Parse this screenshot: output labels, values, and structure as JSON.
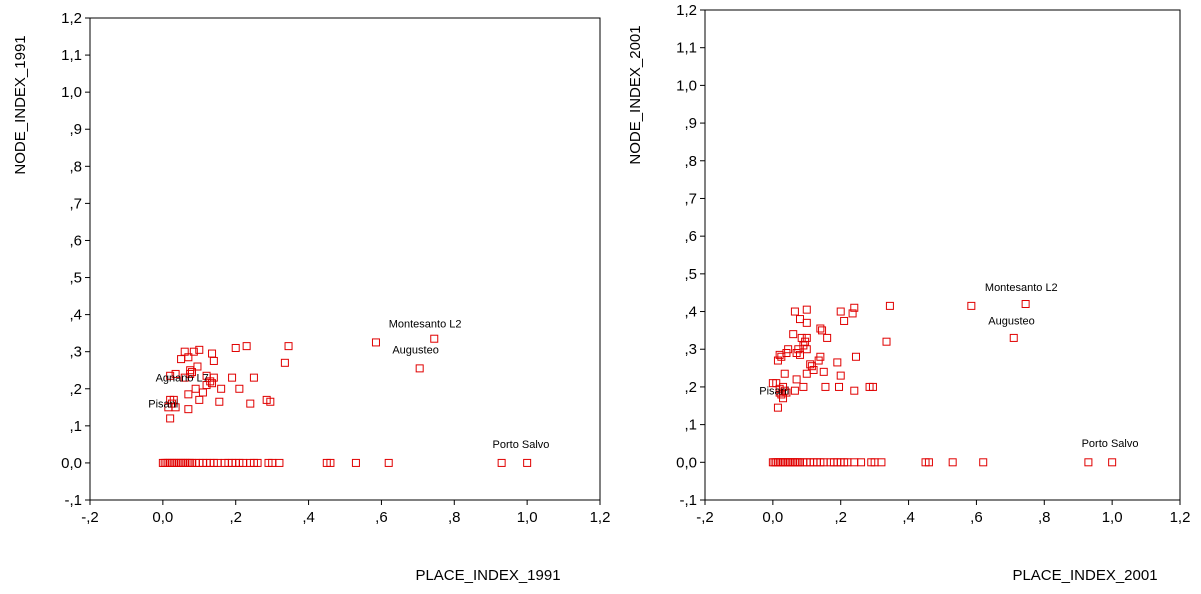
{
  "marker_color": "#e00000",
  "chart_data": [
    {
      "type": "scatter",
      "xlabel": "PLACE_INDEX_1991",
      "ylabel": "NODE_INDEX_1991",
      "xlim": [
        -0.2,
        1.2
      ],
      "ylim": [
        -0.1,
        1.2
      ],
      "x_ticks": [
        "-,2",
        "0,0",
        ",2",
        ",4",
        ",6",
        ",8",
        "1,0",
        "1,2"
      ],
      "y_ticks": [
        "-,1",
        "0,0",
        ",1",
        ",2",
        ",3",
        ",4",
        ",5",
        ",6",
        ",7",
        ",8",
        ",9",
        "1,0",
        "1,1",
        "1,2"
      ],
      "x_tick_values": [
        -0.2,
        0,
        0.2,
        0.4,
        0.6,
        0.8,
        1.0,
        1.2
      ],
      "y_tick_values": [
        -0.1,
        0,
        0.1,
        0.2,
        0.3,
        0.4,
        0.5,
        0.6,
        0.7,
        0.8,
        0.9,
        1.0,
        1.1,
        1.2
      ],
      "grid": false,
      "points": [
        [
          0.0,
          0.0
        ],
        [
          0.005,
          0.0
        ],
        [
          0.01,
          0.0
        ],
        [
          0.015,
          0.0
        ],
        [
          0.02,
          0.0
        ],
        [
          0.025,
          0.0
        ],
        [
          0.03,
          0.0
        ],
        [
          0.035,
          0.0
        ],
        [
          0.04,
          0.0
        ],
        [
          0.045,
          0.0
        ],
        [
          0.05,
          0.0
        ],
        [
          0.055,
          0.0
        ],
        [
          0.06,
          0.0
        ],
        [
          0.065,
          0.0
        ],
        [
          0.07,
          0.0
        ],
        [
          0.075,
          0.0
        ],
        [
          0.08,
          0.0
        ],
        [
          0.09,
          0.0
        ],
        [
          0.1,
          0.0
        ],
        [
          0.11,
          0.0
        ],
        [
          0.12,
          0.0
        ],
        [
          0.13,
          0.0
        ],
        [
          0.14,
          0.0
        ],
        [
          0.15,
          0.0
        ],
        [
          0.17,
          0.0
        ],
        [
          0.18,
          0.0
        ],
        [
          0.19,
          0.0
        ],
        [
          0.2,
          0.0
        ],
        [
          0.21,
          0.0
        ],
        [
          0.22,
          0.0
        ],
        [
          0.24,
          0.0
        ],
        [
          0.25,
          0.0
        ],
        [
          0.26,
          0.0
        ],
        [
          0.29,
          0.0
        ],
        [
          0.3,
          0.0
        ],
        [
          0.32,
          0.0
        ],
        [
          0.45,
          0.0
        ],
        [
          0.46,
          0.0
        ],
        [
          0.53,
          0.0
        ],
        [
          0.62,
          0.0
        ],
        [
          0.93,
          0.0
        ],
        [
          1.0,
          0.0
        ],
        [
          0.02,
          0.12
        ],
        [
          0.015,
          0.15
        ],
        [
          0.025,
          0.16
        ],
        [
          0.03,
          0.17
        ],
        [
          0.035,
          0.15
        ],
        [
          0.02,
          0.17
        ],
        [
          0.07,
          0.145
        ],
        [
          0.1,
          0.17
        ],
        [
          0.155,
          0.165
        ],
        [
          0.24,
          0.16
        ],
        [
          0.07,
          0.185
        ],
        [
          0.11,
          0.19
        ],
        [
          0.09,
          0.2
        ],
        [
          0.12,
          0.21
        ],
        [
          0.13,
          0.22
        ],
        [
          0.14,
          0.23
        ],
        [
          0.12,
          0.235
        ],
        [
          0.19,
          0.23
        ],
        [
          0.25,
          0.23
        ],
        [
          0.21,
          0.2
        ],
        [
          0.16,
          0.2
        ],
        [
          0.285,
          0.17
        ],
        [
          0.295,
          0.165
        ],
        [
          0.02,
          0.235
        ],
        [
          0.035,
          0.24
        ],
        [
          0.06,
          0.23
        ],
        [
          0.075,
          0.25
        ],
        [
          0.075,
          0.24
        ],
        [
          0.08,
          0.245
        ],
        [
          0.095,
          0.26
        ],
        [
          0.05,
          0.28
        ],
        [
          0.07,
          0.285
        ],
        [
          0.085,
          0.3
        ],
        [
          0.06,
          0.3
        ],
        [
          0.1,
          0.305
        ],
        [
          0.135,
          0.295
        ],
        [
          0.14,
          0.275
        ],
        [
          0.2,
          0.31
        ],
        [
          0.23,
          0.315
        ],
        [
          0.335,
          0.27
        ],
        [
          0.345,
          0.315
        ],
        [
          0.585,
          0.325
        ],
        [
          0.745,
          0.335
        ],
        [
          0.705,
          0.255
        ],
        [
          0.135,
          0.215
        ]
      ],
      "annotations": [
        {
          "text": "Montesanto L2",
          "x": 0.62,
          "y": 0.365
        },
        {
          "text": "Augusteo",
          "x": 0.63,
          "y": 0.295
        },
        {
          "text": "Agnano L7",
          "x": -0.02,
          "y": 0.22
        },
        {
          "text": "Pisani",
          "x": -0.04,
          "y": 0.15
        },
        {
          "text": "Porto Salvo",
          "x": 0.905,
          "y": 0.04
        }
      ]
    },
    {
      "type": "scatter",
      "xlabel": "PLACE_INDEX_2001",
      "ylabel": "NODE_INDEX_2001",
      "xlim": [
        -0.2,
        1.2
      ],
      "ylim": [
        -0.1,
        1.2
      ],
      "x_ticks": [
        "-,2",
        "0,0",
        ",2",
        ",4",
        ",6",
        ",8",
        "1,0",
        "1,2"
      ],
      "y_ticks": [
        "-,1",
        "0,0",
        ",1",
        ",2",
        ",3",
        ",4",
        ",5",
        ",6",
        ",7",
        ",8",
        ",9",
        "1,0",
        "1,1",
        "1,2"
      ],
      "x_tick_values": [
        -0.2,
        0,
        0.2,
        0.4,
        0.6,
        0.8,
        1.0,
        1.2
      ],
      "y_tick_values": [
        -0.1,
        0,
        0.1,
        0.2,
        0.3,
        0.4,
        0.5,
        0.6,
        0.7,
        0.8,
        0.9,
        1.0,
        1.1,
        1.2
      ],
      "grid": false,
      "points": [
        [
          0.0,
          0.0
        ],
        [
          0.005,
          0.0
        ],
        [
          0.01,
          0.0
        ],
        [
          0.015,
          0.0
        ],
        [
          0.02,
          0.0
        ],
        [
          0.025,
          0.0
        ],
        [
          0.03,
          0.0
        ],
        [
          0.035,
          0.0
        ],
        [
          0.04,
          0.0
        ],
        [
          0.045,
          0.0
        ],
        [
          0.05,
          0.0
        ],
        [
          0.055,
          0.0
        ],
        [
          0.06,
          0.0
        ],
        [
          0.065,
          0.0
        ],
        [
          0.07,
          0.0
        ],
        [
          0.075,
          0.0
        ],
        [
          0.08,
          0.0
        ],
        [
          0.09,
          0.0
        ],
        [
          0.1,
          0.0
        ],
        [
          0.11,
          0.0
        ],
        [
          0.12,
          0.0
        ],
        [
          0.13,
          0.0
        ],
        [
          0.14,
          0.0
        ],
        [
          0.15,
          0.0
        ],
        [
          0.17,
          0.0
        ],
        [
          0.18,
          0.0
        ],
        [
          0.19,
          0.0
        ],
        [
          0.2,
          0.0
        ],
        [
          0.21,
          0.0
        ],
        [
          0.22,
          0.0
        ],
        [
          0.24,
          0.0
        ],
        [
          0.26,
          0.0
        ],
        [
          0.29,
          0.0
        ],
        [
          0.3,
          0.0
        ],
        [
          0.32,
          0.0
        ],
        [
          0.45,
          0.0
        ],
        [
          0.46,
          0.0
        ],
        [
          0.53,
          0.0
        ],
        [
          0.62,
          0.0
        ],
        [
          0.93,
          0.0
        ],
        [
          1.0,
          0.0
        ],
        [
          0.015,
          0.145
        ],
        [
          0.03,
          0.17
        ],
        [
          0.02,
          0.185
        ],
        [
          0.025,
          0.18
        ],
        [
          0.035,
          0.19
        ],
        [
          0.03,
          0.2
        ],
        [
          0.01,
          0.21
        ],
        [
          0.0,
          0.21
        ],
        [
          0.02,
          0.195
        ],
        [
          0.04,
          0.185
        ],
        [
          0.065,
          0.19
        ],
        [
          0.09,
          0.2
        ],
        [
          0.07,
          0.22
        ],
        [
          0.035,
          0.235
        ],
        [
          0.015,
          0.27
        ],
        [
          0.025,
          0.28
        ],
        [
          0.02,
          0.285
        ],
        [
          0.04,
          0.29
        ],
        [
          0.045,
          0.3
        ],
        [
          0.07,
          0.29
        ],
        [
          0.075,
          0.3
        ],
        [
          0.08,
          0.285
        ],
        [
          0.09,
          0.31
        ],
        [
          0.1,
          0.3
        ],
        [
          0.095,
          0.32
        ],
        [
          0.085,
          0.33
        ],
        [
          0.1,
          0.33
        ],
        [
          0.11,
          0.26
        ],
        [
          0.115,
          0.255
        ],
        [
          0.12,
          0.245
        ],
        [
          0.135,
          0.27
        ],
        [
          0.14,
          0.28
        ],
        [
          0.1,
          0.235
        ],
        [
          0.15,
          0.24
        ],
        [
          0.155,
          0.2
        ],
        [
          0.195,
          0.2
        ],
        [
          0.2,
          0.23
        ],
        [
          0.19,
          0.265
        ],
        [
          0.245,
          0.28
        ],
        [
          0.285,
          0.2
        ],
        [
          0.295,
          0.2
        ],
        [
          0.24,
          0.19
        ],
        [
          0.06,
          0.34
        ],
        [
          0.065,
          0.4
        ],
        [
          0.08,
          0.38
        ],
        [
          0.1,
          0.37
        ],
        [
          0.1,
          0.405
        ],
        [
          0.14,
          0.355
        ],
        [
          0.145,
          0.35
        ],
        [
          0.16,
          0.33
        ],
        [
          0.2,
          0.4
        ],
        [
          0.21,
          0.375
        ],
        [
          0.235,
          0.395
        ],
        [
          0.24,
          0.41
        ],
        [
          0.345,
          0.415
        ],
        [
          0.335,
          0.32
        ],
        [
          0.585,
          0.415
        ],
        [
          0.745,
          0.42
        ],
        [
          0.71,
          0.33
        ]
      ],
      "annotations": [
        {
          "text": "Montesanto L2",
          "x": 0.625,
          "y": 0.455
        },
        {
          "text": "Augusteo",
          "x": 0.635,
          "y": 0.365
        },
        {
          "text": "Pisani",
          "x": -0.04,
          "y": 0.18
        },
        {
          "text": "Porto Salvo",
          "x": 0.91,
          "y": 0.04
        }
      ]
    }
  ]
}
